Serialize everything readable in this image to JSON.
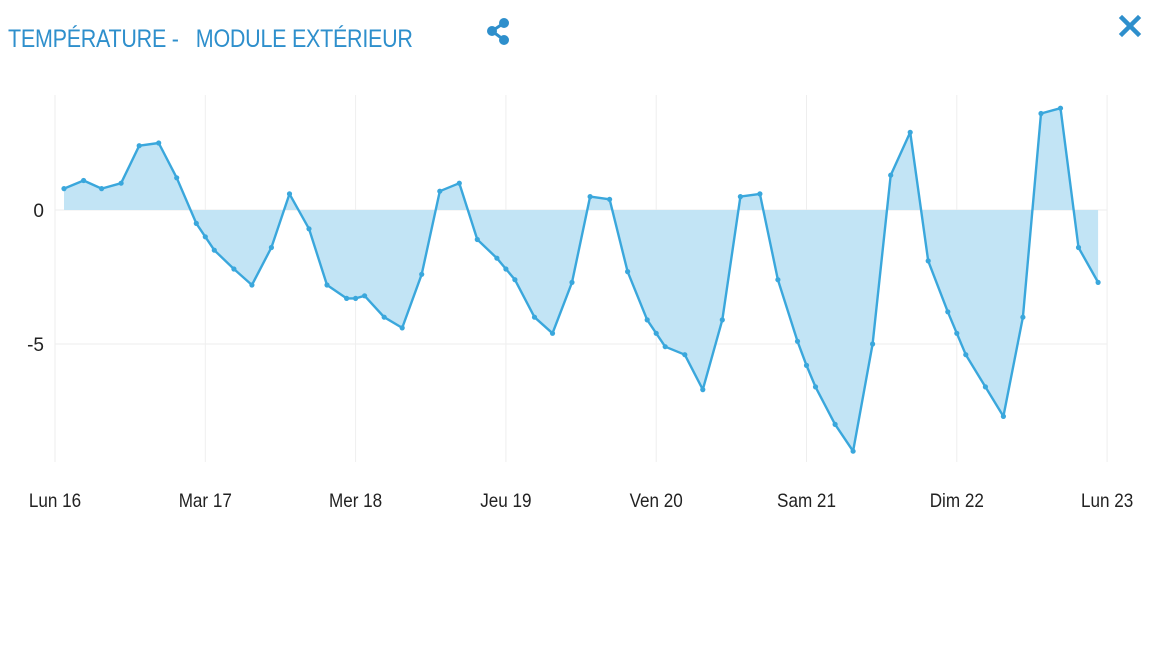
{
  "header": {
    "title": "TEMPÉRATURE -   MODULE EXTÉRIEUR",
    "share_icon": "share-icon",
    "close_icon": "close-icon"
  },
  "colors": {
    "accent": "#2e8fcc",
    "line": "#3aa7dc",
    "area": "#bfe3f4",
    "grid": "#eeeeee"
  },
  "chart_data": {
    "type": "area",
    "title": "TEMPÉRATURE -   MODULE EXTÉRIEUR",
    "xlabel": "",
    "ylabel": "",
    "x_unit": "days",
    "x_ticks": [
      "Lun 16",
      "Mar 17",
      "Mer 18",
      "Jeu 19",
      "Ven 20",
      "Sam 21",
      "Dim 22",
      "Lun 23"
    ],
    "y_ticks": [
      0,
      -5
    ],
    "ylim": [
      -9.3,
      4.4
    ],
    "grid": true,
    "baseline": 0,
    "series": [
      {
        "values": [
          [
            0.06,
            0.8
          ],
          [
            0.19,
            1.1
          ],
          [
            0.31,
            0.8
          ],
          [
            0.44,
            1.0
          ],
          [
            0.56,
            2.4
          ],
          [
            0.69,
            2.5
          ],
          [
            0.81,
            1.2
          ],
          [
            0.94,
            -0.5
          ],
          [
            1.0,
            -1.0
          ],
          [
            1.06,
            -1.5
          ],
          [
            1.19,
            -2.2
          ],
          [
            1.31,
            -2.8
          ],
          [
            1.44,
            -1.4
          ],
          [
            1.56,
            0.6
          ],
          [
            1.69,
            -0.7
          ],
          [
            1.81,
            -2.8
          ],
          [
            1.94,
            -3.3
          ],
          [
            2.0,
            -3.3
          ],
          [
            2.06,
            -3.2
          ],
          [
            2.19,
            -4.0
          ],
          [
            2.31,
            -4.4
          ],
          [
            2.44,
            -2.4
          ],
          [
            2.56,
            0.7
          ],
          [
            2.69,
            1.0
          ],
          [
            2.81,
            -1.1
          ],
          [
            2.94,
            -1.8
          ],
          [
            3.0,
            -2.2
          ],
          [
            3.06,
            -2.6
          ],
          [
            3.19,
            -4.0
          ],
          [
            3.31,
            -4.6
          ],
          [
            3.44,
            -2.7
          ],
          [
            3.56,
            0.5
          ],
          [
            3.69,
            0.4
          ],
          [
            3.81,
            -2.3
          ],
          [
            3.94,
            -4.1
          ],
          [
            4.0,
            -4.6
          ],
          [
            4.06,
            -5.1
          ],
          [
            4.19,
            -5.4
          ],
          [
            4.31,
            -6.7
          ],
          [
            4.44,
            -4.1
          ],
          [
            4.56,
            0.5
          ],
          [
            4.69,
            0.6
          ],
          [
            4.81,
            -2.6
          ],
          [
            4.94,
            -4.9
          ],
          [
            5.0,
            -5.8
          ],
          [
            5.06,
            -6.6
          ],
          [
            5.19,
            -8.0
          ],
          [
            5.31,
            -9.0
          ],
          [
            5.44,
            -5.0
          ],
          [
            5.56,
            1.3
          ],
          [
            5.69,
            2.9
          ],
          [
            5.81,
            -1.9
          ],
          [
            5.94,
            -3.8
          ],
          [
            6.0,
            -4.6
          ],
          [
            6.06,
            -5.4
          ],
          [
            6.19,
            -6.6
          ],
          [
            6.31,
            -7.7
          ],
          [
            6.44,
            -4.0
          ],
          [
            6.56,
            3.6
          ],
          [
            6.69,
            3.8
          ],
          [
            6.81,
            -1.4
          ],
          [
            6.94,
            -2.7
          ]
        ]
      }
    ]
  }
}
